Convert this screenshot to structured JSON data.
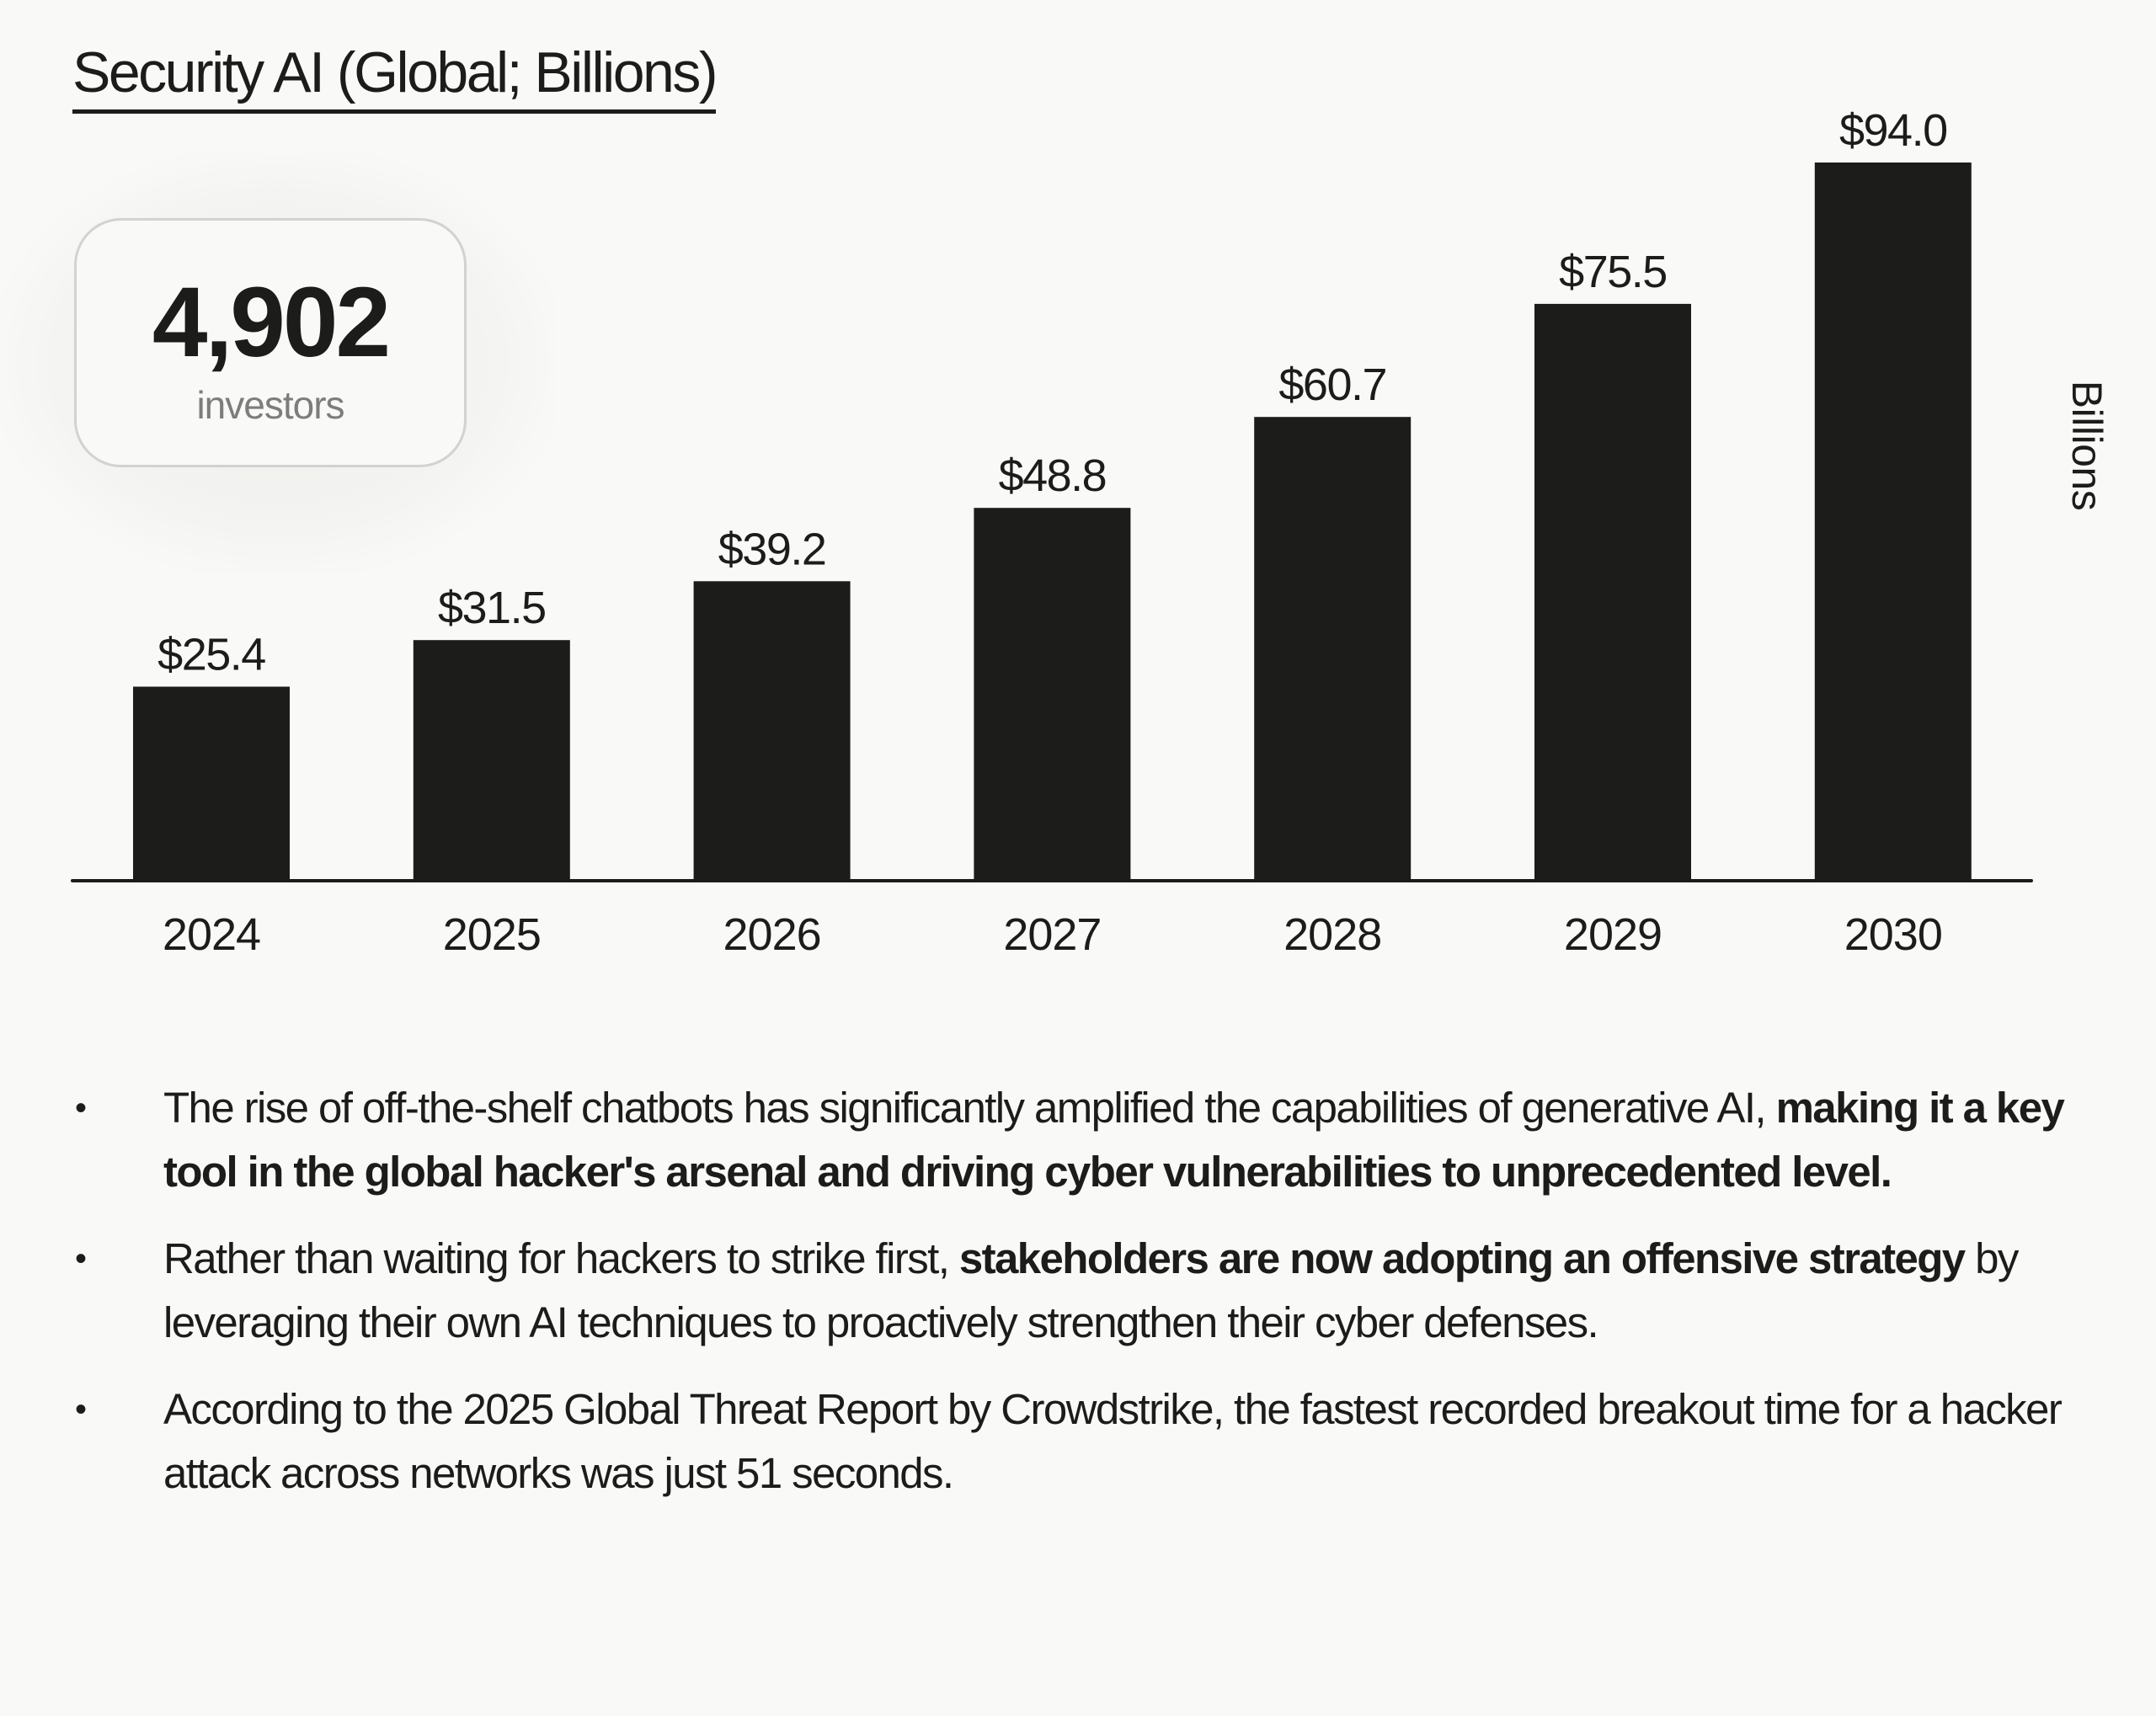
{
  "title": "Security AI (Global; Billions)",
  "stat_card": {
    "value": "4,902",
    "label": "investors"
  },
  "y_axis_label": "Billions",
  "colors": {
    "background": "#f9f9f7",
    "bar": "#1c1c1a",
    "text": "#1c1c1a",
    "muted_text": "#7d7d7b",
    "card_border": "#d2d2d0"
  },
  "chart_data": {
    "type": "bar",
    "title": "Security AI (Global; Billions)",
    "xlabel": "",
    "ylabel": "Billions",
    "categories": [
      "2024",
      "2025",
      "2026",
      "2027",
      "2028",
      "2029",
      "2030"
    ],
    "values": [
      25.4,
      31.5,
      39.2,
      48.8,
      60.7,
      75.5,
      94.0
    ],
    "data_labels": [
      "$25.4",
      "$31.5",
      "$39.2",
      "$48.8",
      "$60.7",
      "$75.5",
      "$94.0"
    ],
    "ylim": [
      0,
      94.0
    ],
    "grid": false,
    "legend": "none"
  },
  "bullets": [
    {
      "segments": [
        {
          "text": "The rise of off-the-shelf chatbots has significantly amplified the capabilities of generative AI, ",
          "bold": false
        },
        {
          "text": "making it a key tool in the global hacker's arsenal and driving cyber vulnerabilities to unprecedented level.",
          "bold": true
        }
      ]
    },
    {
      "segments": [
        {
          "text": "Rather than waiting for hackers to strike first, ",
          "bold": false
        },
        {
          "text": "stakeholders are now adopting an offensive strategy",
          "bold": true
        },
        {
          "text": " by leveraging their own AI techniques to proactively strengthen their cyber defenses.",
          "bold": false
        }
      ]
    },
    {
      "segments": [
        {
          "text": "According to the 2025 Global Threat Report by Crowdstrike, the fastest recorded breakout time for a hacker attack across networks was just 51 seconds.",
          "bold": false
        }
      ]
    }
  ],
  "bullet_symbol": "•"
}
